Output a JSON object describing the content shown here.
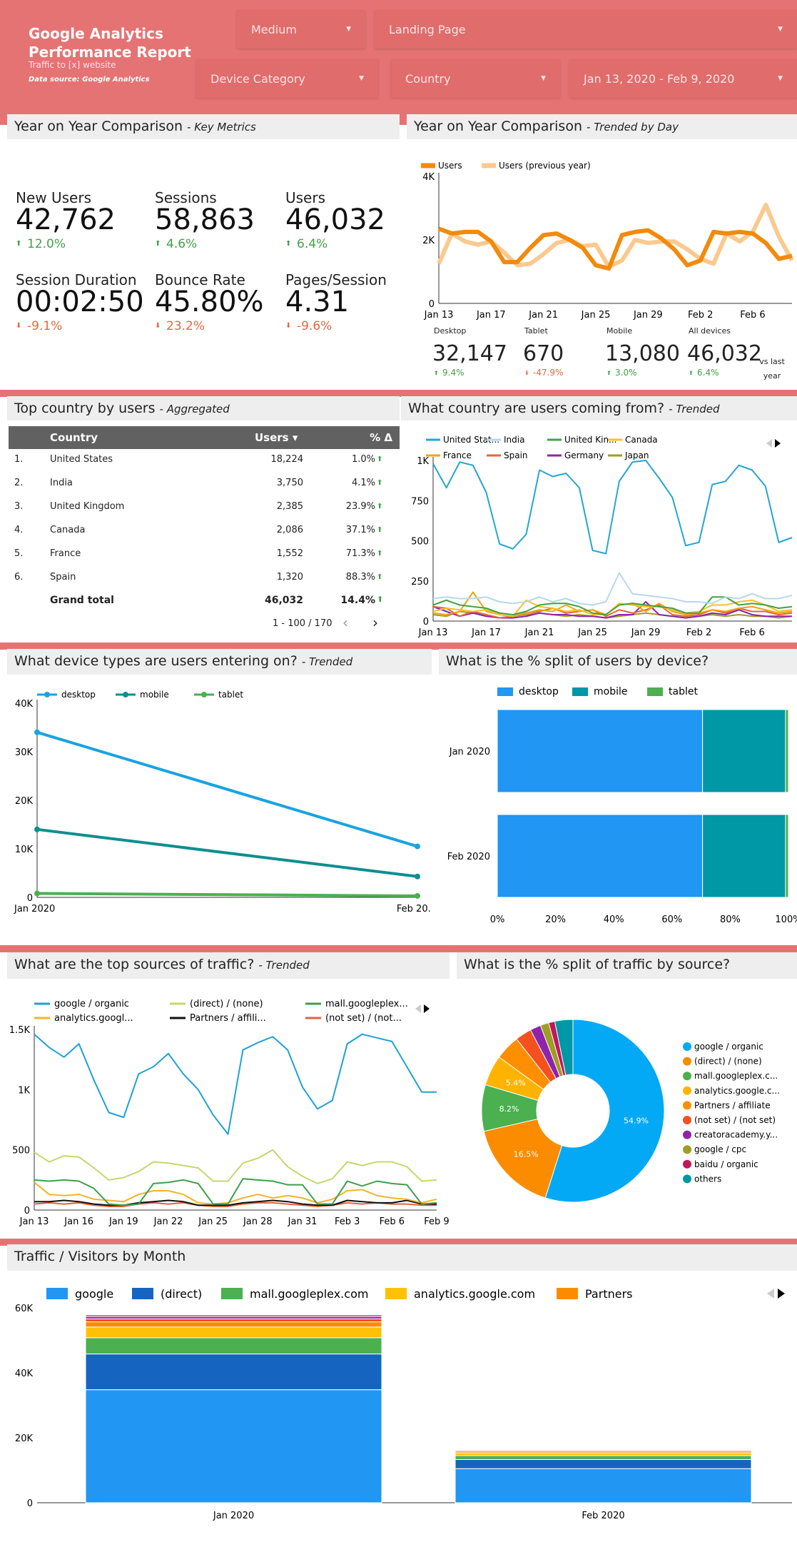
{
  "header": {
    "title": "Google Analytics Performance Report",
    "subtitle": "Traffic to [x] website",
    "source": "Data source: Google Analytics",
    "filters": [
      "Medium",
      "Landing Page",
      "Device Category",
      "Country",
      "Jan 13, 2020 - Feb 9, 2020"
    ],
    "color": "#e57373"
  },
  "s1": {
    "left_title": "Year on Year Comparison",
    "left_sub": "- Key Metrics",
    "right_title": "Year on Year Comparison",
    "right_sub": "- Trended by Day",
    "metrics": [
      {
        "label": "New Users",
        "value": "42,762",
        "change": "12.0%",
        "dir": "up"
      },
      {
        "label": "Sessions",
        "value": "58,863",
        "change": "4.6%",
        "dir": "up"
      },
      {
        "label": "Users",
        "value": "46,032",
        "change": "6.4%",
        "dir": "up"
      },
      {
        "label": "Session Duration",
        "value": "00:02:50",
        "change": "-9.1%",
        "dir": "down"
      },
      {
        "label": "Bounce Rate",
        "value": "45.80%",
        "change": "23.2%",
        "dir": "down"
      },
      {
        "label": "Pages/Session",
        "value": "4.31",
        "change": "-9.6%",
        "dir": "down"
      }
    ],
    "devices": [
      {
        "label": "Desktop",
        "value": "32,147",
        "change": "9.4%",
        "dir": "up"
      },
      {
        "label": "Tablet",
        "value": "670",
        "change": "-47.9%",
        "dir": "down"
      },
      {
        "label": "Mobile",
        "value": "13,080",
        "change": "3.0%",
        "dir": "up"
      },
      {
        "label": "All devices",
        "value": "46,032",
        "change": "6.4%",
        "dir": "up"
      }
    ],
    "vs_label": "vs last year"
  },
  "s2": {
    "left_title": "Top country by users",
    "left_sub": "- Aggregated",
    "right_title": "What country are users coming from?",
    "right_sub": "- Trended",
    "table": {
      "columns": [
        "Country",
        "Users ▾",
        "% Δ"
      ],
      "rows": [
        [
          "1.",
          "United States",
          "18,224",
          "1.0%"
        ],
        [
          "2.",
          "India",
          "3,750",
          "4.1%"
        ],
        [
          "3.",
          "United Kingdom",
          "2,385",
          "23.9%"
        ],
        [
          "4.",
          "Canada",
          "2,086",
          "37.1%"
        ],
        [
          "5.",
          "France",
          "1,552",
          "71.3%"
        ],
        [
          "6.",
          "Spain",
          "1,320",
          "88.3%"
        ]
      ],
      "total": [
        "Grand total",
        "46,032",
        "14.4%"
      ],
      "pagination": "1 - 100 / 170"
    }
  },
  "s3": {
    "left_title": "What device types are users entering on?",
    "left_sub": "- Trended",
    "right_title": "What is the % split of users by device?",
    "right_sub": ""
  },
  "s4": {
    "left_title": "What are the top sources of traffic?",
    "left_sub": "- Trended",
    "right_title": "What is the % split of traffic by source?",
    "right_sub": ""
  },
  "s5": {
    "title": "Traffic / Visitors by Month"
  },
  "chart_data": [
    {
      "id": "yoy",
      "type": "line",
      "x": [
        "Jan 13",
        "Jan 14",
        "Jan 15",
        "Jan 16",
        "Jan 17",
        "Jan 18",
        "Jan 19",
        "Jan 20",
        "Jan 21",
        "Jan 22",
        "Jan 23",
        "Jan 24",
        "Jan 25",
        "Jan 26",
        "Jan 27",
        "Jan 28",
        "Jan 29",
        "Jan 30",
        "Jan 31",
        "Feb 1",
        "Feb 2",
        "Feb 3",
        "Feb 4",
        "Feb 5",
        "Feb 6",
        "Feb 7",
        "Feb 8",
        "Feb 9"
      ],
      "xticks": [
        "Jan 13",
        "Jan 17",
        "Jan 21",
        "Jan 25",
        "Jan 29",
        "Feb 2",
        "Feb 6"
      ],
      "yticks": [
        "0",
        "2K",
        "4K"
      ],
      "ylim": [
        0,
        4000
      ],
      "legend": "top",
      "series": [
        {
          "name": "Users",
          "color": "#f28a0c",
          "values": [
            2350,
            2200,
            2250,
            2250,
            1950,
            1300,
            1300,
            1750,
            2150,
            2200,
            2000,
            1750,
            1200,
            1100,
            2150,
            2250,
            2300,
            2050,
            1700,
            1200,
            1350,
            2250,
            2200,
            2250,
            2200,
            1900,
            1400,
            1500
          ]
        },
        {
          "name": "Users (previous year)",
          "color": "#fbc98e",
          "values": [
            1250,
            2200,
            1950,
            1850,
            1950,
            1600,
            1200,
            1250,
            1550,
            1900,
            2000,
            1800,
            1850,
            1150,
            1350,
            2000,
            1900,
            1950,
            1950,
            1700,
            1400,
            1250,
            2200,
            1950,
            2250,
            3100,
            2100,
            1350
          ]
        }
      ]
    },
    {
      "id": "country",
      "type": "line",
      "xticks": [
        "Jan 13",
        "Jan 17",
        "Jan 21",
        "Jan 25",
        "Jan 29",
        "Feb 2",
        "Feb 6"
      ],
      "yticks": [
        "0",
        "250",
        "500",
        "750",
        "1K"
      ],
      "ylim": [
        0,
        1000
      ],
      "legend": "top",
      "series": [
        {
          "name": "United Stat...",
          "color": "#26a6d1",
          "values": [
            980,
            830,
            990,
            970,
            800,
            480,
            450,
            540,
            940,
            900,
            920,
            830,
            440,
            420,
            870,
            990,
            1000,
            890,
            770,
            470,
            490,
            850,
            870,
            970,
            940,
            840,
            490,
            520
          ]
        },
        {
          "name": "India",
          "color": "#b8d8ea",
          "values": [
            140,
            150,
            140,
            140,
            150,
            120,
            110,
            120,
            150,
            120,
            140,
            110,
            100,
            120,
            300,
            170,
            160,
            150,
            140,
            120,
            120,
            110,
            150,
            140,
            170,
            140,
            140,
            160
          ]
        },
        {
          "name": "United Kin...",
          "color": "#43a047",
          "values": [
            100,
            130,
            100,
            90,
            80,
            50,
            40,
            60,
            100,
            110,
            110,
            90,
            50,
            40,
            100,
            110,
            100,
            90,
            80,
            50,
            50,
            150,
            150,
            100,
            110,
            100,
            80,
            90
          ]
        },
        {
          "name": "Canada",
          "color": "#f6c026",
          "values": [
            60,
            80,
            70,
            60,
            70,
            40,
            30,
            130,
            90,
            80,
            60,
            70,
            40,
            40,
            110,
            100,
            90,
            90,
            70,
            50,
            60,
            100,
            100,
            120,
            130,
            100,
            60,
            70
          ]
        },
        {
          "name": "France",
          "color": "#f2a30f",
          "values": [
            50,
            40,
            60,
            180,
            60,
            40,
            30,
            50,
            70,
            60,
            100,
            60,
            70,
            40,
            100,
            110,
            60,
            110,
            60,
            40,
            50,
            70,
            60,
            80,
            90,
            70,
            50,
            60
          ]
        },
        {
          "name": "Spain",
          "color": "#e4643b",
          "values": [
            90,
            80,
            30,
            60,
            40,
            20,
            30,
            50,
            60,
            80,
            50,
            60,
            70,
            30,
            70,
            50,
            70,
            100,
            40,
            30,
            40,
            70,
            50,
            80,
            60,
            60,
            40,
            50
          ]
        },
        {
          "name": "Germany",
          "color": "#8e24aa",
          "values": [
            90,
            60,
            30,
            50,
            30,
            20,
            20,
            30,
            50,
            40,
            40,
            30,
            30,
            20,
            40,
            40,
            120,
            40,
            30,
            20,
            30,
            50,
            40,
            70,
            40,
            30,
            30,
            30
          ]
        },
        {
          "name": "Japan",
          "color": "#9e9d24",
          "values": [
            40,
            30,
            60,
            50,
            40,
            20,
            30,
            40,
            50,
            40,
            30,
            40,
            30,
            20,
            30,
            40,
            50,
            40,
            30,
            20,
            30,
            40,
            30,
            40,
            30,
            30,
            20,
            30
          ]
        }
      ]
    },
    {
      "id": "device",
      "type": "line",
      "x": [
        "Jan 2020",
        "Feb 20..."
      ],
      "xticks": [
        "Jan 2020",
        "Feb 20..."
      ],
      "yticks": [
        "0",
        "10K",
        "20K",
        "30K",
        "40K"
      ],
      "ylim": [
        0,
        40000
      ],
      "legend": "top",
      "series": [
        {
          "name": "desktop",
          "color": "#1aa3e0",
          "values": [
            34000,
            10500
          ]
        },
        {
          "name": "mobile",
          "color": "#0d8f8f",
          "values": [
            14000,
            4300
          ]
        },
        {
          "name": "tablet",
          "color": "#4caf50",
          "values": [
            800,
            300
          ]
        }
      ]
    },
    {
      "id": "devsplit",
      "type": "bar",
      "orientation": "horizontal",
      "stacked": "percent",
      "categories": [
        "Jan 2020",
        "Feb 2020"
      ],
      "xticks": [
        "0%",
        "20%",
        "40%",
        "60%",
        "80%",
        "100%"
      ],
      "legend": "top",
      "series": [
        {
          "name": "desktop",
          "color": "#2196f3",
          "values": [
            70.5,
            70.5
          ]
        },
        {
          "name": "mobile",
          "color": "#0097a7",
          "values": [
            28.5,
            28.5
          ]
        },
        {
          "name": "tablet",
          "color": "#4caf50",
          "values": [
            1.0,
            1.0
          ]
        }
      ]
    },
    {
      "id": "sources",
      "type": "line",
      "xticks": [
        "Jan 13",
        "Jan 16",
        "Jan 19",
        "Jan 22",
        "Jan 25",
        "Jan 28",
        "Jan 31",
        "Feb 3",
        "Feb 6",
        "Feb 9"
      ],
      "yticks": [
        "0",
        "500",
        "1K",
        "1.5K"
      ],
      "ylim": [
        0,
        1500
      ],
      "legend": "top",
      "series": [
        {
          "name": "google / organic",
          "color": "#1ea1d6",
          "values": [
            1460,
            1350,
            1270,
            1380,
            1080,
            810,
            770,
            1130,
            1190,
            1300,
            1130,
            1000,
            790,
            630,
            1330,
            1390,
            1440,
            1330,
            1020,
            840,
            910,
            1380,
            1460,
            1430,
            1400,
            1190,
            980,
            980
          ]
        },
        {
          "name": "(direct) / (none)",
          "color": "#c5d86d",
          "values": [
            480,
            400,
            450,
            440,
            350,
            250,
            270,
            320,
            400,
            390,
            370,
            350,
            240,
            240,
            390,
            430,
            500,
            360,
            280,
            220,
            260,
            400,
            370,
            400,
            400,
            360,
            240,
            250
          ]
        },
        {
          "name": "mall.googleplex...",
          "color": "#3f9e4d",
          "values": [
            250,
            240,
            250,
            240,
            180,
            50,
            40,
            50,
            220,
            230,
            250,
            220,
            50,
            50,
            260,
            250,
            240,
            210,
            210,
            50,
            50,
            240,
            200,
            240,
            220,
            210,
            50,
            60
          ]
        },
        {
          "name": "analytics.googl...",
          "color": "#f4b42a",
          "values": [
            230,
            130,
            120,
            130,
            90,
            80,
            70,
            130,
            160,
            160,
            130,
            60,
            50,
            60,
            100,
            130,
            100,
            120,
            100,
            60,
            90,
            160,
            170,
            120,
            100,
            90,
            60,
            90
          ]
        },
        {
          "name": "Partners / affili...",
          "color": "#111111",
          "values": [
            70,
            70,
            80,
            70,
            50,
            40,
            40,
            60,
            70,
            80,
            70,
            40,
            40,
            40,
            60,
            70,
            80,
            70,
            50,
            40,
            40,
            80,
            70,
            60,
            60,
            80,
            50,
            50
          ]
        },
        {
          "name": "(not set) / (not...",
          "color": "#e4643b",
          "values": [
            50,
            60,
            50,
            60,
            40,
            30,
            30,
            50,
            60,
            50,
            60,
            40,
            30,
            30,
            50,
            60,
            60,
            50,
            40,
            30,
            40,
            60,
            50,
            60,
            50,
            50,
            40,
            40
          ]
        }
      ]
    },
    {
      "id": "pie",
      "type": "pie",
      "donut": true,
      "legend": "right",
      "slices": [
        {
          "name": "google / organic",
          "value": 54.9,
          "label": "54.9%",
          "color": "#03a9f4"
        },
        {
          "name": "(direct) / (none)",
          "value": 16.5,
          "label": "16.5%",
          "color": "#fb8c00"
        },
        {
          "name": "mall.googleplex.c...",
          "value": 8.2,
          "label": "8.2%",
          "color": "#4caf50"
        },
        {
          "name": "analytics.google.c...",
          "value": 5.4,
          "label": "5.4%",
          "color": "#ffb300"
        },
        {
          "name": "Partners / affiliate",
          "value": 4.4,
          "color": "#ff8f00"
        },
        {
          "name": "(not set) / (not set)",
          "value": 2.9,
          "color": "#f4511e"
        },
        {
          "name": "creatoracademy.y...",
          "value": 1.9,
          "color": "#8e24aa"
        },
        {
          "name": "google / cpc",
          "value": 1.5,
          "color": "#9e9d24"
        },
        {
          "name": "baidu / organic",
          "value": 1.1,
          "color": "#c2185b"
        },
        {
          "name": "others",
          "value": 3.2,
          "color": "#0097a7"
        }
      ]
    },
    {
      "id": "monthly",
      "type": "bar",
      "stacked": true,
      "categories": [
        "Jan 2020",
        "Feb 2020"
      ],
      "yticks": [
        "0",
        "20K",
        "40K",
        "60K"
      ],
      "ylim": [
        0,
        60000
      ],
      "legend": "top",
      "series": [
        {
          "name": "google",
          "color": "#2196f3",
          "values": [
            34800,
            10500
          ]
        },
        {
          "name": "(direct)",
          "color": "#1565c0",
          "values": [
            11000,
            2800
          ]
        },
        {
          "name": "mall.googleplex.com",
          "color": "#4caf50",
          "values": [
            5000,
            1200
          ]
        },
        {
          "name": "analytics.google.com",
          "color": "#ffc107",
          "values": [
            3300,
            850
          ]
        },
        {
          "name": "Partners",
          "color": "#fb8c00",
          "values": [
            1600,
            500
          ]
        },
        {
          "color": "#f4511e",
          "values": [
            900,
            300
          ]
        },
        {
          "color": "#8e24aa",
          "values": [
            700,
            250
          ]
        },
        {
          "color": "#c2185b",
          "values": [
            500,
            150
          ]
        }
      ]
    }
  ]
}
